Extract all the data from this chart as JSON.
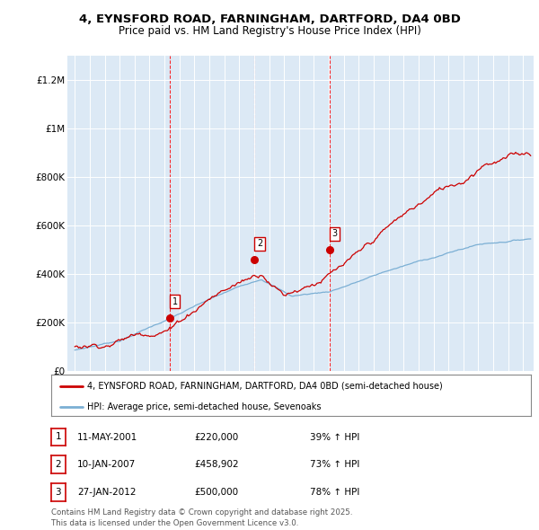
{
  "title_line1": "4, EYNSFORD ROAD, FARNINGHAM, DARTFORD, DA4 0BD",
  "title_line2": "Price paid vs. HM Land Registry's House Price Index (HPI)",
  "property_label": "4, EYNSFORD ROAD, FARNINGHAM, DARTFORD, DA4 0BD (semi-detached house)",
  "hpi_label": "HPI: Average price, semi-detached house, Sevenoaks",
  "property_color": "#cc0000",
  "hpi_color": "#7bafd4",
  "plot_bg_color": "#dce9f5",
  "transactions": [
    {
      "id": 1,
      "date": "11-MAY-2001",
      "x_year": 2001.37,
      "price": 220000
    },
    {
      "id": 2,
      "date": "10-JAN-2007",
      "x_year": 2007.03,
      "price": 458902
    },
    {
      "id": 3,
      "date": "27-JAN-2012",
      "x_year": 2012.07,
      "price": 500000
    }
  ],
  "ylim": [
    0,
    1300000
  ],
  "xlim": [
    1994.5,
    2025.7
  ],
  "yticks": [
    0,
    200000,
    400000,
    600000,
    800000,
    1000000,
    1200000
  ],
  "ytick_labels": [
    "£0",
    "£200K",
    "£400K",
    "£600K",
    "£800K",
    "£1M",
    "£1.2M"
  ],
  "footer": "Contains HM Land Registry data © Crown copyright and database right 2025.\nThis data is licensed under the Open Government Licence v3.0.",
  "legend_table": [
    {
      "id": 1,
      "date": "11-MAY-2001",
      "price": "£220,000",
      "pct_hpi": "39% ↑ HPI"
    },
    {
      "id": 2,
      "date": "10-JAN-2007",
      "price": "£458,902",
      "pct_hpi": "73% ↑ HPI"
    },
    {
      "id": 3,
      "date": "27-JAN-2012",
      "price": "£500,000",
      "pct_hpi": "78% ↑ HPI"
    }
  ]
}
